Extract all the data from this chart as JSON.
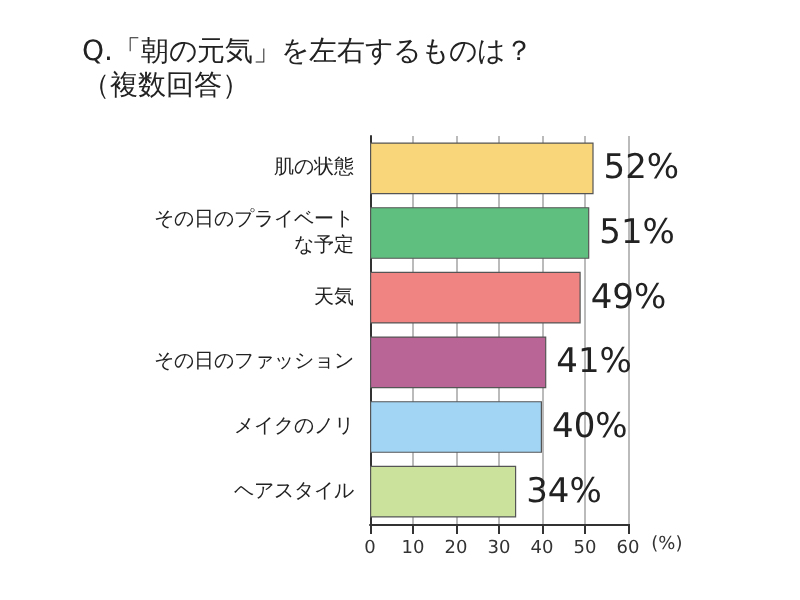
{
  "chart_data": {
    "type": "bar",
    "orientation": "horizontal",
    "title": "Q.「朝の元気」を左右するものは？",
    "subtitle": "（複数回答）",
    "categories": [
      "肌の状態",
      "その日のプライベートな予定",
      "天気",
      "その日のファッション",
      "メイクのノリ",
      "ヘアスタイル"
    ],
    "values": [
      52,
      51,
      49,
      41,
      40,
      34
    ],
    "colors": [
      "#f9d67a",
      "#5fbf7f",
      "#ef8482",
      "#b96596",
      "#a2d4f3",
      "#cbe29c"
    ],
    "value_labels": [
      "52%",
      "51%",
      "49%",
      "41%",
      "40%",
      "34%"
    ],
    "xlabel": "(%)",
    "xlim": [
      0,
      60
    ],
    "xticks": [
      0,
      10,
      20,
      30,
      40,
      50,
      60
    ],
    "grid": "x"
  }
}
